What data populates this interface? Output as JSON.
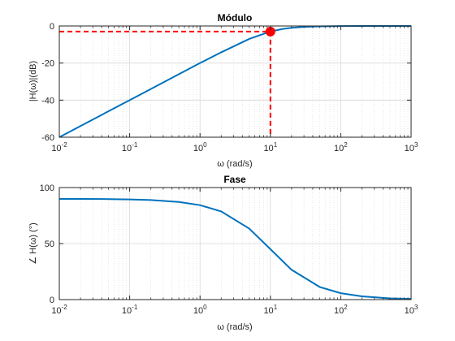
{
  "colors": {
    "line": "#0072BD",
    "marker": "#FF0000",
    "dashed": "#FF0000",
    "grid": "#D9D9D9",
    "axis": "#262626"
  },
  "chart_data": [
    {
      "type": "line",
      "title": "Módulo",
      "xlabel": "ω (rad/s)",
      "ylabel": "|H(ω)|(dB)",
      "xscale": "log",
      "xlim": [
        0.01,
        1000
      ],
      "ylim": [
        -60,
        0
      ],
      "yticks": [
        "0",
        "-20",
        "-40",
        "-60"
      ],
      "yticks_values": [
        0,
        -20,
        -40,
        -60
      ],
      "xticks_base": [
        "10",
        "10",
        "10",
        "10",
        "10",
        "10"
      ],
      "xticks_exp": [
        "-2",
        "-1",
        "0",
        "1",
        "2",
        "3"
      ],
      "xticks_values": [
        0.01,
        0.1,
        1,
        10,
        100,
        1000
      ],
      "grid": true,
      "minor_grid": true,
      "series": [
        {
          "values_x": [
            0.01,
            0.02,
            0.05,
            0.1,
            0.2,
            0.5,
            1,
            2,
            5,
            10,
            15,
            20,
            30,
            50,
            100,
            200,
            500,
            1000
          ],
          "values_y": [
            -60.0,
            -54.0,
            -46.0,
            -40.0,
            -34.0,
            -26.0,
            -20.0,
            -14.2,
            -7.0,
            -3.0,
            -1.6,
            -1.0,
            -0.5,
            -0.2,
            -0.04,
            -0.01,
            0.0,
            0.0
          ]
        }
      ],
      "marker_point": {
        "x": 10,
        "y": -3
      },
      "annotation": "dashed lines at ω = 10 rad/s and -3 dB"
    },
    {
      "type": "line",
      "title": "Fase",
      "xlabel": "ω (rad/s)",
      "ylabel": "∠ H(ω) (°)",
      "xscale": "log",
      "xlim": [
        0.01,
        1000
      ],
      "ylim": [
        0,
        100
      ],
      "yticks": [
        "100",
        "50",
        "0"
      ],
      "yticks_values": [
        100,
        50,
        0
      ],
      "xticks_base": [
        "10",
        "10",
        "10",
        "10",
        "10",
        "10"
      ],
      "xticks_exp": [
        "-2",
        "-1",
        "0",
        "1",
        "2",
        "3"
      ],
      "xticks_values": [
        0.01,
        0.1,
        1,
        10,
        100,
        1000
      ],
      "grid": true,
      "minor_grid": true,
      "series": [
        {
          "values_x": [
            0.01,
            0.02,
            0.05,
            0.1,
            0.2,
            0.5,
            1,
            2,
            5,
            10,
            20,
            50,
            100,
            200,
            500,
            1000
          ],
          "values_y": [
            89.9,
            89.9,
            89.7,
            89.4,
            88.9,
            87.1,
            84.3,
            78.7,
            63.4,
            45.0,
            26.6,
            11.3,
            5.7,
            2.9,
            1.1,
            0.6
          ]
        }
      ]
    }
  ]
}
